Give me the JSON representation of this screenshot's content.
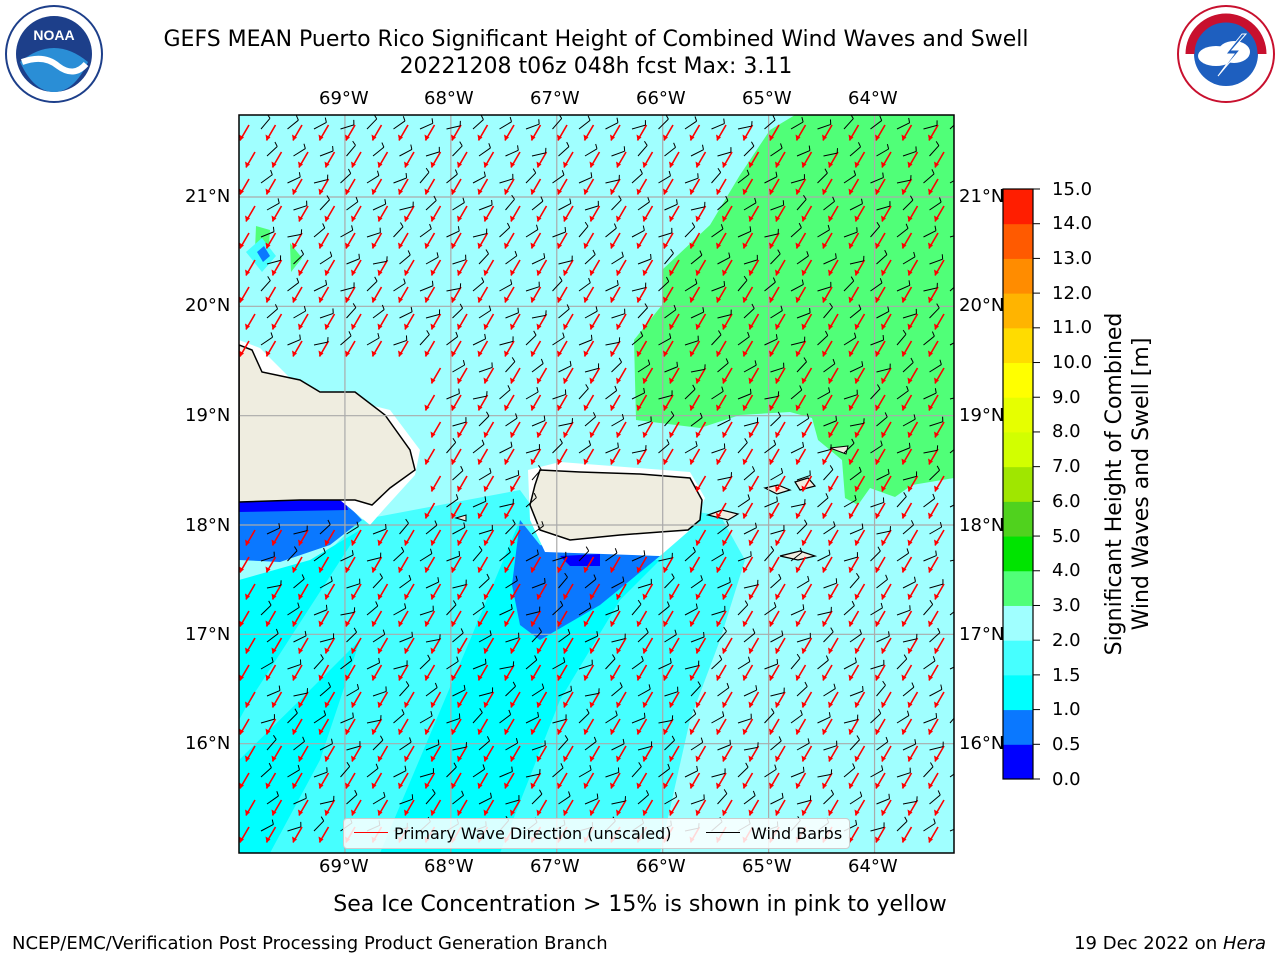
{
  "header": {
    "title_line1": "GEFS MEAN Puerto Rico Significant Height of Combined Wind Waves and Swell",
    "title_line2": "20221208 t06z 048h fcst   Max: 3.11"
  },
  "logos": {
    "noaa": {
      "text": "NOAA",
      "ring_text": "NATIONAL OCEANIC AND ATMOSPHERIC ADMINISTRATION · U.S. DEPARTMENT OF COMMERCE"
    },
    "nws": {
      "ring_text": "NATIONAL WEATHER SERVICE"
    }
  },
  "map": {
    "lon_labels": [
      "69°W",
      "68°W",
      "67°W",
      "66°W",
      "65°W",
      "64°W"
    ],
    "lat_labels": [
      "21°N",
      "20°N",
      "19°N",
      "18°N",
      "17°N",
      "16°N"
    ],
    "lon_range": [
      -70.0,
      -63.25
    ],
    "lat_range": [
      15.0,
      21.75
    ],
    "features": [
      "Hispaniola",
      "Puerto Rico",
      "Virgin Islands",
      "St. Croix"
    ]
  },
  "colorbar": {
    "label_line1": "Significant Height of Combined",
    "label_line2": "Wind Waves and Swell [m]",
    "ticks": [
      "15.0",
      "14.0",
      "13.0",
      "12.0",
      "11.0",
      "10.0",
      "9.0",
      "8.0",
      "7.0",
      "6.0",
      "5.0",
      "4.0",
      "3.0",
      "2.0",
      "1.5",
      "1.0",
      "0.5",
      "0.0"
    ],
    "colors_bottom_to_top": [
      "#0000ff",
      "#0a78ff",
      "#00ffff",
      "#46ffff",
      "#a0ffff",
      "#50ff78",
      "#00e400",
      "#50d21e",
      "#a0e600",
      "#d2ff00",
      "#e6ff00",
      "#ffff00",
      "#ffdc00",
      "#ffb400",
      "#ff8c00",
      "#ff5a00",
      "#ff1e00"
    ]
  },
  "legend": {
    "primary_wave_direction": "Primary Wave Direction (unscaled)",
    "wind_barbs": "Wind Barbs",
    "wave_color": "#ff0000",
    "barb_color": "#000000"
  },
  "footnote": "Sea Ice Concentration > 15% is shown in pink to yellow",
  "credits": {
    "left": "NCEP/EMC/Verification Post Processing Product Generation Branch",
    "right_prefix": "19 Dec 2022 on ",
    "right_host": "Hera"
  }
}
